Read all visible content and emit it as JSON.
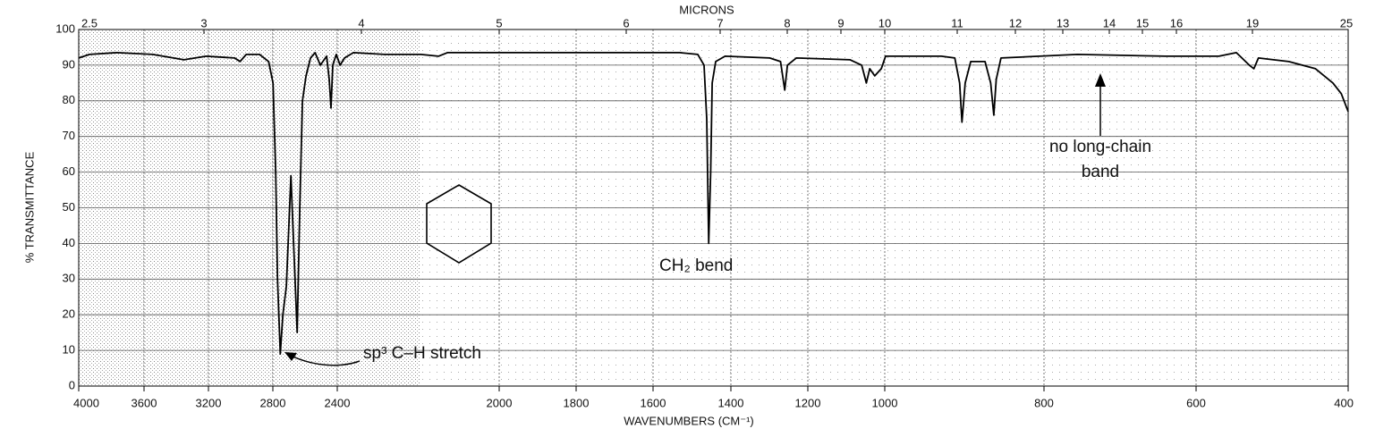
{
  "chart_data": {
    "type": "line",
    "y_label": "% TRANSMITTANCE",
    "x_label": "WAVENUMBERS (CM⁻¹)",
    "x2_label": "MICRONS",
    "xlim": [
      4000,
      400
    ],
    "ylim": [
      0,
      100
    ],
    "xticks": [
      4000,
      3600,
      3200,
      2800,
      2400,
      2000,
      1800,
      1600,
      1400,
      1200,
      1000,
      800,
      600,
      400
    ],
    "x2ticks": [
      2.5,
      3,
      4,
      5,
      6,
      7,
      8,
      9,
      10,
      11,
      12,
      13,
      14,
      15,
      16,
      19,
      25
    ],
    "yticks": [
      0,
      10,
      20,
      30,
      40,
      50,
      60,
      70,
      80,
      90,
      100
    ],
    "grid": true,
    "series": [
      {
        "color": "#000000",
        "x": [
          4000,
          3934,
          3767,
          3546,
          3352,
          3214,
          3037,
          3004,
          2965,
          2882,
          2826,
          2799,
          2782,
          2771,
          2754,
          2738,
          2716,
          2688,
          2671,
          2649,
          2633,
          2616,
          2594,
          2566,
          2538,
          2505,
          2466,
          2450,
          2439,
          2428,
          2406,
          2393,
          2382,
          2360,
          2283,
          2194,
          2150,
          2128,
          1995,
          1671,
          1531,
          1485,
          1469,
          1462,
          1457,
          1452,
          1448,
          1439,
          1415,
          1299,
          1271,
          1260,
          1253,
          1230,
          1090,
          1060,
          1048,
          1039,
          1026,
          1009,
          999,
          929,
          912,
          906,
          903,
          899,
          892,
          874,
          867,
          863,
          860,
          854,
          756,
          640,
          570,
          547,
          530,
          524,
          518,
          478,
          443,
          420,
          409,
          400
        ],
        "values": [
          92,
          93,
          93.5,
          93,
          91.5,
          92.5,
          92,
          91,
          93,
          93,
          91,
          85,
          60,
          30,
          9,
          20,
          28,
          59,
          40,
          15,
          50,
          80,
          87,
          92,
          93.5,
          90,
          92.5,
          86,
          78,
          90,
          93,
          90,
          92,
          93.5,
          93,
          93,
          92.5,
          93.5,
          93.5,
          93.5,
          93.5,
          93,
          90,
          75,
          40,
          60,
          85,
          91,
          92.5,
          92,
          91,
          83,
          90,
          92,
          91.5,
          90,
          85,
          89,
          87,
          89,
          92.5,
          92.5,
          92,
          85,
          74,
          85,
          91,
          91,
          85,
          76,
          86,
          92,
          93,
          92.5,
          92.5,
          93.5,
          90,
          89,
          92,
          91,
          89,
          85,
          82,
          77
        ]
      }
    ],
    "annotations": [
      {
        "text": "sp³ C–H stretch"
      },
      {
        "text": "CH₂ bend"
      },
      {
        "text": [
          "no long-chain",
          "band"
        ]
      }
    ]
  }
}
